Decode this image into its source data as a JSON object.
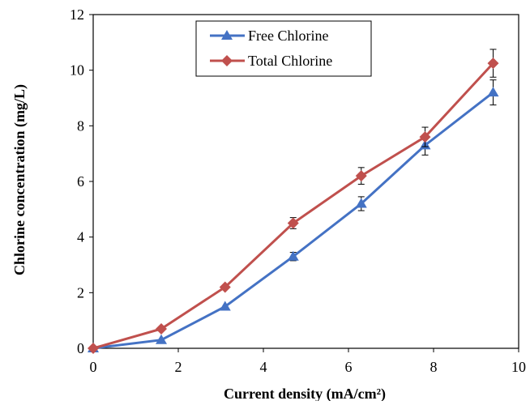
{
  "chart_data": {
    "type": "line",
    "title": "",
    "xlabel": "Current density (mA/cm²)",
    "ylabel": "Chlorine concentration (mg/L)",
    "xlim": [
      0,
      10
    ],
    "ylim": [
      0,
      12
    ],
    "x_ticks": [
      0,
      2,
      4,
      6,
      8,
      10
    ],
    "y_ticks": [
      0,
      2,
      4,
      6,
      8,
      10,
      12
    ],
    "grid": false,
    "legend_position": "top-center",
    "x": [
      0,
      1.6,
      3.1,
      4.7,
      6.3,
      7.8,
      9.4
    ],
    "series": [
      {
        "name": "Free Chlorine",
        "marker": "triangle",
        "color": "#4472C4",
        "values": [
          0,
          0.3,
          1.5,
          3.3,
          5.2,
          7.3,
          9.2
        ],
        "error": [
          0,
          0,
          0,
          0.15,
          0.25,
          0.35,
          0.45
        ]
      },
      {
        "name": "Total Chlorine",
        "marker": "diamond",
        "color": "#C0504D",
        "values": [
          0,
          0.7,
          2.2,
          4.5,
          6.2,
          7.6,
          10.25
        ],
        "error": [
          0,
          0,
          0,
          0.2,
          0.3,
          0.35,
          0.5
        ]
      }
    ]
  }
}
